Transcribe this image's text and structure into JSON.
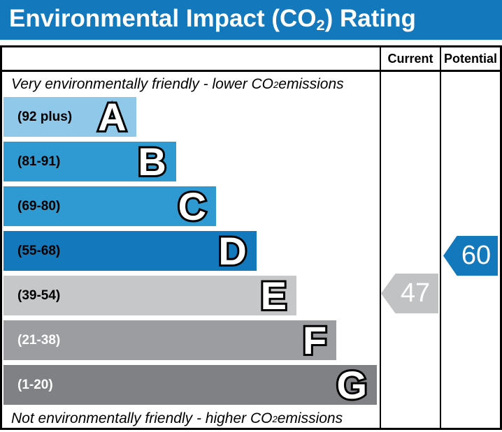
{
  "title": {
    "pre": "Environmental Impact (CO",
    "sub": "2",
    "post": ") Rating"
  },
  "header": {
    "current": "Current",
    "potential": "Potential"
  },
  "notes": {
    "top_pre": "Very environmentally friendly - lower CO",
    "top_sub": "2",
    "top_post": " emissions",
    "bottom_pre": "Not environmentally friendly - higher CO",
    "bottom_sub": "2",
    "bottom_post": " emissions"
  },
  "colors": {
    "title_bar": "#1478bd",
    "border": "#000000",
    "current_arrow": "#c1c2c4",
    "potential_arrow": "#1478bd",
    "arrow_text": "#ffffff"
  },
  "bands": [
    {
      "letter": "A",
      "range": "(92 plus)",
      "color": "#8fc8e9",
      "label_color": "#000000",
      "width_pct": 35.1
    },
    {
      "letter": "B",
      "range": "(81-91)",
      "color": "#2e9ad1",
      "label_color": "#000000",
      "width_pct": 45.7
    },
    {
      "letter": "C",
      "range": "(69-80)",
      "color": "#2e9ad1",
      "label_color": "#000000",
      "width_pct": 56.3
    },
    {
      "letter": "D",
      "range": "(55-68)",
      "color": "#1478bd",
      "label_color": "#000000",
      "width_pct": 67.0
    },
    {
      "letter": "E",
      "range": "(39-54)",
      "color": "#c6c7c9",
      "label_color": "#000000",
      "width_pct": 77.6
    },
    {
      "letter": "F",
      "range": "(21-38)",
      "color": "#9b9da0",
      "label_color": "#ffffff",
      "width_pct": 88.2
    },
    {
      "letter": "G",
      "range": "(1-20)",
      "color": "#808184",
      "label_color": "#ffffff",
      "width_pct": 98.9
    }
  ],
  "current": {
    "value": "47",
    "band": "E",
    "color": "#c1c2c4"
  },
  "potential": {
    "value": "60",
    "band": "D",
    "color": "#1478bd"
  },
  "chart_data": {
    "type": "bar",
    "title": "Environmental Impact (CO2) Rating",
    "categories": [
      "A",
      "B",
      "C",
      "D",
      "E",
      "F",
      "G"
    ],
    "band_ranges": [
      "92 plus",
      "81-91",
      "69-80",
      "55-68",
      "39-54",
      "21-38",
      "1-20"
    ],
    "band_colors": [
      "#8fc8e9",
      "#2e9ad1",
      "#2e9ad1",
      "#1478bd",
      "#c6c7c9",
      "#9b9da0",
      "#808184"
    ],
    "bar_width_pct": [
      35.1,
      45.7,
      56.3,
      67.0,
      77.6,
      88.2,
      98.9
    ],
    "scale": [
      1,
      100
    ],
    "series": [
      {
        "name": "Current",
        "value": 47,
        "band": "E",
        "color": "#c1c2c4"
      },
      {
        "name": "Potential",
        "value": 60,
        "band": "D",
        "color": "#1478bd"
      }
    ],
    "top_annotation": "Very environmentally friendly - lower CO2 emissions",
    "bottom_annotation": "Not environmentally friendly - higher CO2 emissions",
    "legend_position": "none",
    "grid": false
  }
}
